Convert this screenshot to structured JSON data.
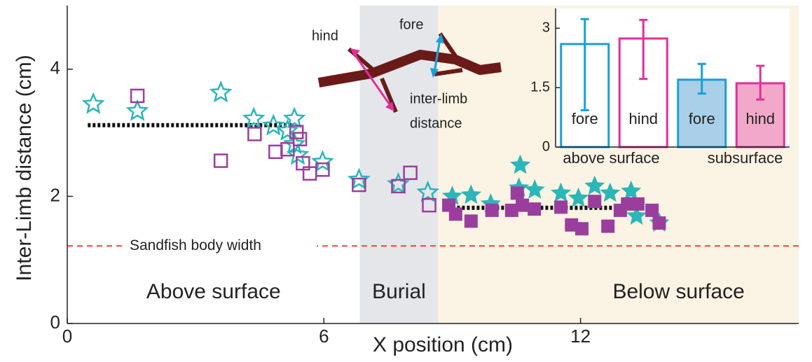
{
  "chart_data": [
    {
      "type": "scatter",
      "xlabel": "X position  (cm)",
      "ylabel": "Inter-Limb distance (cm)",
      "xlim": [
        0,
        17.1
      ],
      "ylim": [
        0,
        5
      ],
      "xticks": [
        0,
        6,
        12
      ],
      "yticks": [
        0,
        2,
        4
      ],
      "regions": [
        {
          "label": "Above surface",
          "xrange": [
            0,
            6.84
          ],
          "color": "#ffffff"
        },
        {
          "label": "Burial",
          "xrange": [
            6.84,
            8.67
          ],
          "color": "#e4e6ea"
        },
        {
          "label": "Below surface",
          "xrange": [
            8.67,
            17.1
          ],
          "color": "#fbf3e3"
        }
      ],
      "series": [
        {
          "marker": "star",
          "color": "#2bb6b8",
          "x": [
            0.61,
            1.64,
            3.59,
            4.36,
            4.82,
            5.31,
            5.15,
            5.31,
            5.39,
            5.97,
            6.82,
            7.74,
            8.43,
            9.0,
            9.44,
            9.9,
            10.56,
            10.59,
            10.93,
            11.54,
            11.95,
            12.33,
            12.69,
            13.18,
            13.31,
            13.84
          ],
          "values": [
            3.45,
            3.34,
            3.63,
            3.22,
            3.11,
            3.22,
            3.03,
            2.82,
            2.65,
            2.54,
            2.26,
            2.19,
            2.06,
            2.0,
            2.02,
            1.88,
            2.13,
            2.49,
            2.1,
            2.05,
            1.97,
            2.16,
            2.05,
            2.08,
            1.69,
            1.58
          ]
        },
        {
          "marker": "square",
          "color": "#9a3e9e",
          "x": [
            1.64,
            3.59,
            4.38,
            4.87,
            5.15,
            5.36,
            5.44,
            5.51,
            5.67,
            5.97,
            6.82,
            7.74,
            8.02,
            8.46,
            8.92,
            9.08,
            9.44,
            9.93,
            10.39,
            10.52,
            10.64,
            10.92,
            11.54,
            11.79,
            12.03,
            12.33,
            12.64,
            12.93,
            13.1,
            13.34,
            13.67,
            13.84
          ],
          "values": [
            3.58,
            2.56,
            2.98,
            2.7,
            2.74,
            3.01,
            2.9,
            2.52,
            2.36,
            2.42,
            2.18,
            2.16,
            2.37,
            1.86,
            1.86,
            1.72,
            1.61,
            1.78,
            1.78,
            2.05,
            1.86,
            1.8,
            1.83,
            1.55,
            1.49,
            1.92,
            1.53,
            1.78,
            1.88,
            1.88,
            1.78,
            1.58
          ]
        }
      ],
      "reference_lines": [
        {
          "y": 3.12,
          "xrange": [
            0.48,
            5.25
          ],
          "style": "dotted",
          "color": "#111111"
        },
        {
          "y": 1.82,
          "xrange": [
            8.77,
            13.3
          ],
          "style": "dotted",
          "color": "#111111"
        },
        {
          "y": 1.22,
          "xrange": [
            0,
            17.1
          ],
          "style": "dashed",
          "color": "#e8483a",
          "label": "Sandfish body width"
        }
      ],
      "annotations": [
        "hind",
        "fore",
        "inter-limb",
        "distance"
      ]
    },
    {
      "type": "bar",
      "categories": [
        "fore",
        "hind",
        "fore",
        "hind"
      ],
      "groups": [
        "above surface",
        "subsurface"
      ],
      "values": [
        2.6,
        2.74,
        1.7,
        1.61
      ],
      "lower": [
        0.93,
        1.72,
        1.35,
        1.2
      ],
      "upper": [
        3.23,
        3.21,
        2.1,
        2.05
      ],
      "colors": [
        "#1a9fd8",
        "#e0309a",
        "#1a9fd8",
        "#e0309a"
      ],
      "fills": [
        "#ffffff",
        "#ffffff",
        "#a9d0e8",
        "#f2a9c9"
      ],
      "ylim": [
        0,
        3.5
      ],
      "yticks": [
        0,
        1.5,
        3
      ]
    }
  ]
}
